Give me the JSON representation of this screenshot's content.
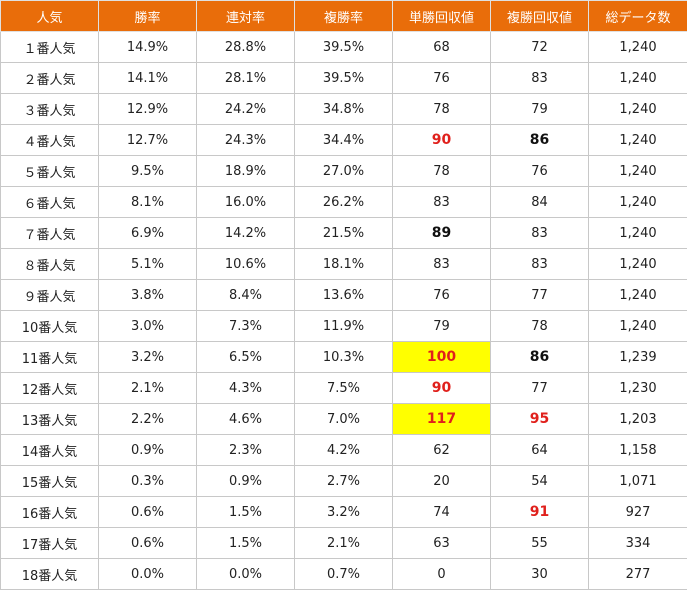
{
  "table": {
    "headers": [
      "人気",
      "勝率",
      "連対率",
      "複勝率",
      "単勝回収値",
      "複勝回収値",
      "総データ数"
    ],
    "rows": [
      {
        "cells": [
          "１番人気",
          "14.9%",
          "28.8%",
          "39.5%",
          "68",
          "72",
          "1,240"
        ],
        "styles": [
          "",
          "",
          "",
          "",
          "",
          "",
          ""
        ]
      },
      {
        "cells": [
          "２番人気",
          "14.1%",
          "28.1%",
          "39.5%",
          "76",
          "83",
          "1,240"
        ],
        "styles": [
          "",
          "",
          "",
          "",
          "",
          "",
          ""
        ]
      },
      {
        "cells": [
          "３番人気",
          "12.9%",
          "24.2%",
          "34.8%",
          "78",
          "79",
          "1,240"
        ],
        "styles": [
          "",
          "",
          "",
          "",
          "",
          "",
          ""
        ]
      },
      {
        "cells": [
          "４番人気",
          "12.7%",
          "24.3%",
          "34.4%",
          "90",
          "86",
          "1,240"
        ],
        "styles": [
          "",
          "",
          "",
          "",
          "red",
          "bold",
          ""
        ]
      },
      {
        "cells": [
          "５番人気",
          "9.5%",
          "18.9%",
          "27.0%",
          "78",
          "76",
          "1,240"
        ],
        "styles": [
          "",
          "",
          "",
          "",
          "",
          "",
          ""
        ]
      },
      {
        "cells": [
          "６番人気",
          "8.1%",
          "16.0%",
          "26.2%",
          "83",
          "84",
          "1,240"
        ],
        "styles": [
          "",
          "",
          "",
          "",
          "",
          "",
          ""
        ]
      },
      {
        "cells": [
          "７番人気",
          "6.9%",
          "14.2%",
          "21.5%",
          "89",
          "83",
          "1,240"
        ],
        "styles": [
          "",
          "",
          "",
          "",
          "bold",
          "",
          ""
        ]
      },
      {
        "cells": [
          "８番人気",
          "5.1%",
          "10.6%",
          "18.1%",
          "83",
          "83",
          "1,240"
        ],
        "styles": [
          "",
          "",
          "",
          "",
          "",
          "",
          ""
        ]
      },
      {
        "cells": [
          "９番人気",
          "3.8%",
          "8.4%",
          "13.6%",
          "76",
          "77",
          "1,240"
        ],
        "styles": [
          "",
          "",
          "",
          "",
          "",
          "",
          ""
        ]
      },
      {
        "cells": [
          "10番人気",
          "3.0%",
          "7.3%",
          "11.9%",
          "79",
          "78",
          "1,240"
        ],
        "styles": [
          "",
          "",
          "",
          "",
          "",
          "",
          ""
        ]
      },
      {
        "cells": [
          "11番人気",
          "3.2%",
          "6.5%",
          "10.3%",
          "100",
          "86",
          "1,239"
        ],
        "styles": [
          "",
          "",
          "",
          "",
          "red-yellow",
          "bold",
          ""
        ]
      },
      {
        "cells": [
          "12番人気",
          "2.1%",
          "4.3%",
          "7.5%",
          "90",
          "77",
          "1,230"
        ],
        "styles": [
          "",
          "",
          "",
          "",
          "red",
          "",
          ""
        ]
      },
      {
        "cells": [
          "13番人気",
          "2.2%",
          "4.6%",
          "7.0%",
          "117",
          "95",
          "1,203"
        ],
        "styles": [
          "",
          "",
          "",
          "",
          "red-yellow",
          "red",
          ""
        ]
      },
      {
        "cells": [
          "14番人気",
          "0.9%",
          "2.3%",
          "4.2%",
          "62",
          "64",
          "1,158"
        ],
        "styles": [
          "",
          "",
          "",
          "",
          "",
          "",
          ""
        ]
      },
      {
        "cells": [
          "15番人気",
          "0.3%",
          "0.9%",
          "2.7%",
          "20",
          "54",
          "1,071"
        ],
        "styles": [
          "",
          "",
          "",
          "",
          "",
          "",
          ""
        ]
      },
      {
        "cells": [
          "16番人気",
          "0.6%",
          "1.5%",
          "3.2%",
          "74",
          "91",
          "927"
        ],
        "styles": [
          "",
          "",
          "",
          "",
          "",
          "red",
          ""
        ]
      },
      {
        "cells": [
          "17番人気",
          "0.6%",
          "1.5%",
          "2.1%",
          "63",
          "55",
          "334"
        ],
        "styles": [
          "",
          "",
          "",
          "",
          "",
          "",
          ""
        ]
      },
      {
        "cells": [
          "18番人気",
          "0.0%",
          "0.0%",
          "0.7%",
          "0",
          "30",
          "277"
        ],
        "styles": [
          "",
          "",
          "",
          "",
          "",
          "",
          ""
        ]
      }
    ]
  },
  "colors": {
    "header_bg": "#e96d0a",
    "header_text": "#ffffff",
    "highlight_red": "#e0201c",
    "highlight_yellow": "#ffff00",
    "grid": "#c8c8c8"
  }
}
